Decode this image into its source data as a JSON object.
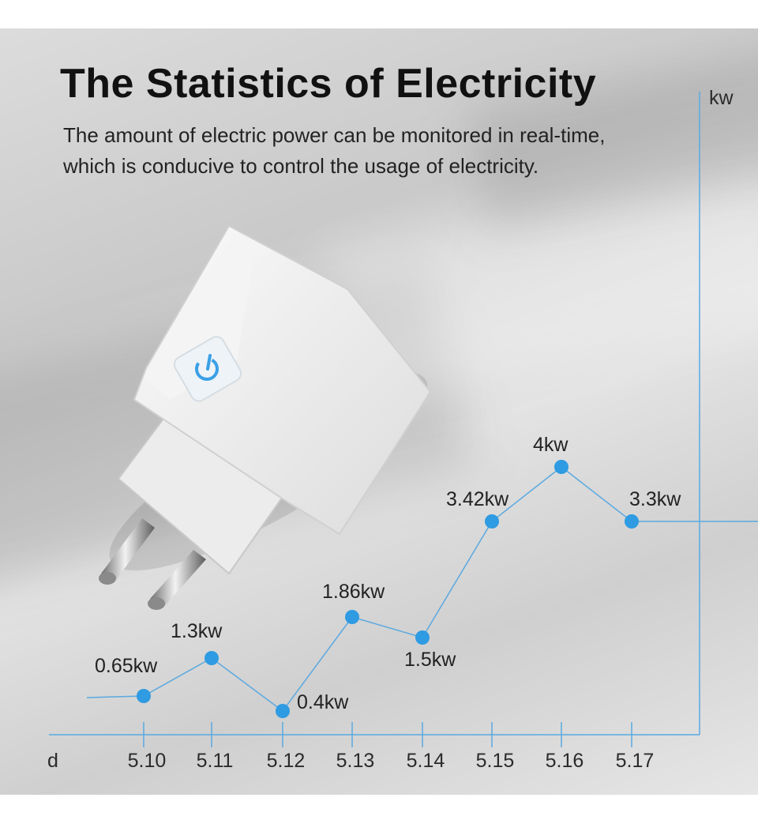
{
  "header": {
    "title": "The Statistics of Electricity",
    "subtitle_line1": "The amount of electric power can be monitored in real-time,",
    "subtitle_line2": "which is conducive to control the usage of electricity."
  },
  "colors": {
    "line": "#5aa9e0",
    "point": "#2e9be2",
    "text": "#222222"
  },
  "chart_data": {
    "type": "line",
    "categories": [
      "5.10",
      "5.11",
      "5.12",
      "5.13",
      "5.14",
      "5.15",
      "5.16",
      "5.17"
    ],
    "values": [
      0.65,
      1.3,
      0.4,
      1.86,
      1.5,
      3.42,
      4,
      3.3
    ],
    "data_labels": [
      "0.65kw",
      "1.3kw",
      "0.4kw",
      "1.86kw",
      "1.5kw",
      "3.42kw",
      "4kw",
      "3.3kw"
    ],
    "xlabel": "d",
    "ylabel": "kw",
    "grid": false,
    "legend": false
  }
}
